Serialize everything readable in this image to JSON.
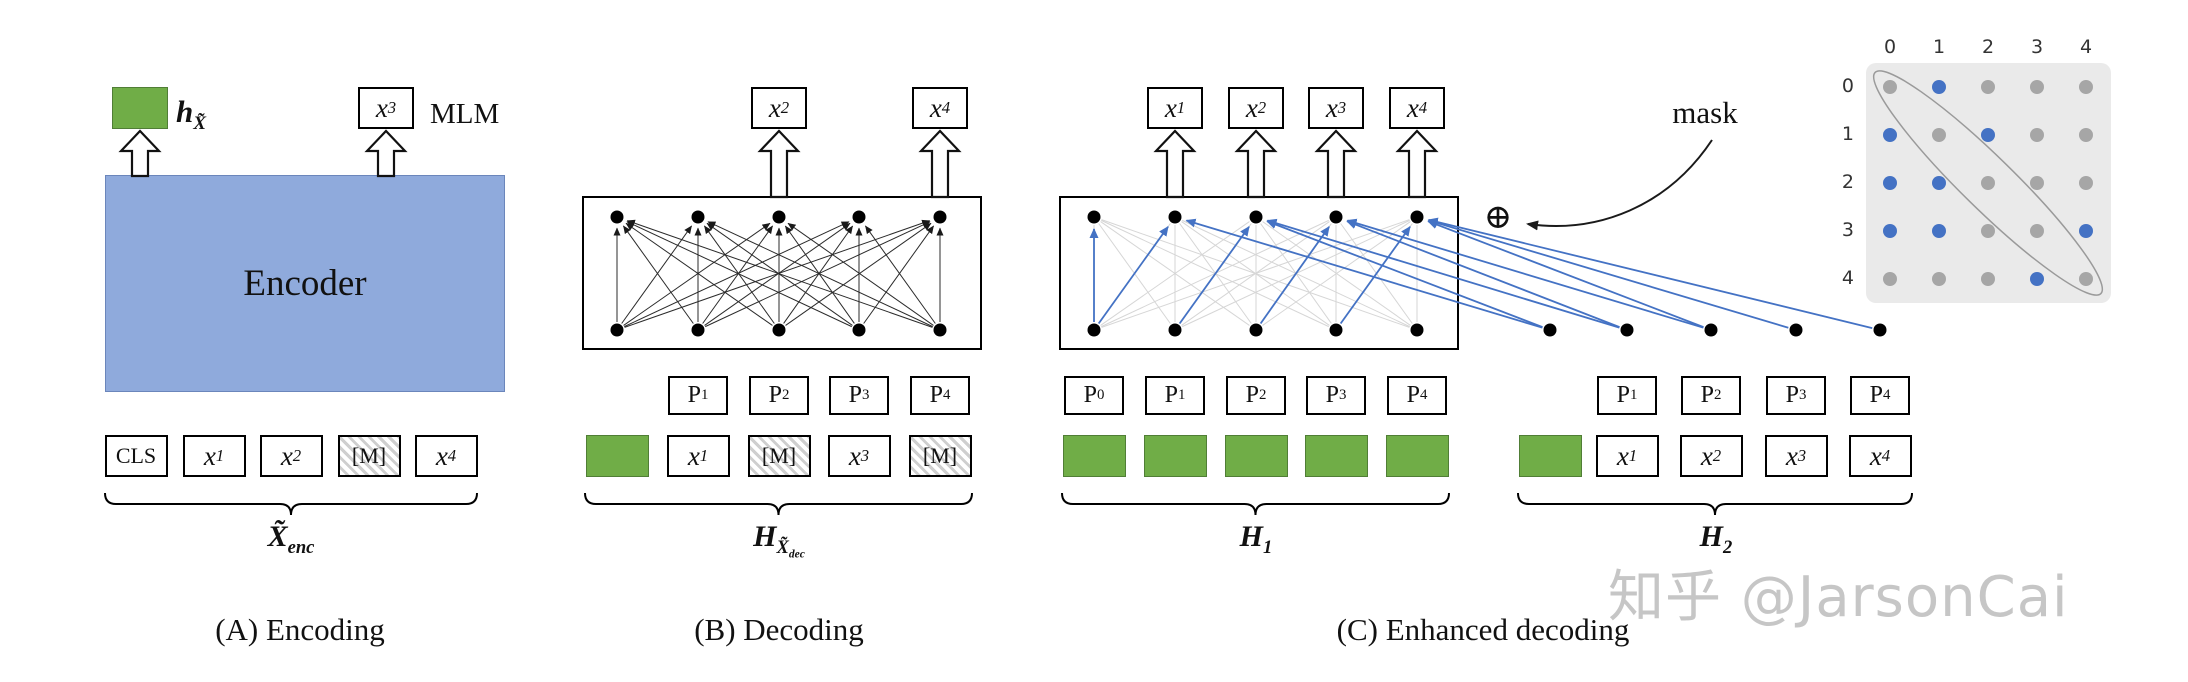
{
  "panel_a": {
    "caption": "(A) Encoding",
    "encoder_label": "Encoder",
    "mlm_label": "MLM",
    "h_label": {
      "base": "h",
      "sub": "X̃"
    },
    "brace_label": {
      "base": "X̃",
      "sub": "enc"
    },
    "top": [
      {
        "type": "green",
        "name": "sentence-embedding-box"
      },
      {
        "base": "x",
        "sub": "3",
        "type": "math",
        "name": "output-token-x3"
      }
    ],
    "tokens": [
      {
        "base": "CLS",
        "type": "plain",
        "name": "token-cls"
      },
      {
        "base": "x",
        "sub": "1",
        "type": "math",
        "name": "token-x1"
      },
      {
        "base": "x",
        "sub": "2",
        "type": "math",
        "name": "token-x2"
      },
      {
        "base": "[M]",
        "type": "mask",
        "name": "token-mask"
      },
      {
        "base": "x",
        "sub": "4",
        "type": "math",
        "name": "token-x4"
      }
    ]
  },
  "panel_b": {
    "caption": "(B) Decoding",
    "brace_label": {
      "base": "H",
      "sub": "X̃",
      "subsub": "dec"
    },
    "top": [
      {
        "base": "x",
        "sub": "2",
        "type": "math",
        "name": "output-token-x2"
      },
      {
        "base": "x",
        "sub": "4",
        "type": "math",
        "name": "output-token-x4"
      }
    ],
    "p_labels": [
      {
        "base": "P",
        "sub": "1",
        "type": "plain",
        "name": "position-p1"
      },
      {
        "base": "P",
        "sub": "2",
        "type": "plain",
        "name": "position-p2"
      },
      {
        "base": "P",
        "sub": "3",
        "type": "plain",
        "name": "position-p3"
      },
      {
        "base": "P",
        "sub": "4",
        "type": "plain",
        "name": "position-p4"
      }
    ],
    "tokens": [
      {
        "type": "green",
        "name": "embedding-box"
      },
      {
        "base": "x",
        "sub": "1",
        "type": "math",
        "name": "token-x1"
      },
      {
        "base": "[M]",
        "type": "mask",
        "name": "token-mask"
      },
      {
        "base": "x",
        "sub": "3",
        "type": "math",
        "name": "token-x3"
      },
      {
        "base": "[M]",
        "type": "mask",
        "name": "token-mask"
      }
    ]
  },
  "panel_c": {
    "caption": "(C) Enhanced decoding",
    "mask_label": "mask",
    "oplus_symbol": "⊕",
    "h1_label": {
      "base": "H",
      "sub": "1"
    },
    "h2_label": {
      "base": "H",
      "sub": "2"
    },
    "top": [
      {
        "base": "x",
        "sub": "1",
        "type": "math",
        "name": "output-token-x1"
      },
      {
        "base": "x",
        "sub": "2",
        "type": "math",
        "name": "output-token-x2"
      },
      {
        "base": "x",
        "sub": "3",
        "type": "math",
        "name": "output-token-x3"
      },
      {
        "base": "x",
        "sub": "4",
        "type": "math",
        "name": "output-token-x4"
      }
    ],
    "p1_labels": [
      {
        "base": "P",
        "sub": "0",
        "type": "plain",
        "name": "position-p0"
      },
      {
        "base": "P",
        "sub": "1",
        "type": "plain",
        "name": "position-p1"
      },
      {
        "base": "P",
        "sub": "2",
        "type": "plain",
        "name": "position-p2"
      },
      {
        "base": "P",
        "sub": "3",
        "type": "plain",
        "name": "position-p3"
      },
      {
        "base": "P",
        "sub": "4",
        "type": "plain",
        "name": "position-p4"
      }
    ],
    "h1_tokens": [
      {
        "type": "green",
        "name": "mask-embedding-box"
      },
      {
        "type": "green",
        "name": "mask-embedding-box"
      },
      {
        "type": "green",
        "name": "mask-embedding-box"
      },
      {
        "type": "green",
        "name": "mask-embedding-box"
      },
      {
        "type": "green",
        "name": "mask-embedding-box"
      }
    ],
    "p2_labels": [
      {
        "base": "P",
        "sub": "1",
        "type": "plain",
        "name": "position-p1"
      },
      {
        "base": "P",
        "sub": "2",
        "type": "plain",
        "name": "position-p2"
      },
      {
        "base": "P",
        "sub": "3",
        "type": "plain",
        "name": "position-p3"
      },
      {
        "base": "P",
        "sub": "4",
        "type": "plain",
        "name": "position-p4"
      }
    ],
    "h2_tokens": [
      {
        "type": "green",
        "name": "embedding-box"
      },
      {
        "base": "x",
        "sub": "1",
        "type": "math",
        "name": "token-x1"
      },
      {
        "base": "x",
        "sub": "2",
        "type": "math",
        "name": "token-x2"
      },
      {
        "base": "x",
        "sub": "3",
        "type": "math",
        "name": "token-x3"
      },
      {
        "base": "x",
        "sub": "4",
        "type": "math",
        "name": "token-x4"
      }
    ]
  },
  "attention_matrix": {
    "col_labels": [
      "0",
      "1",
      "2",
      "3",
      "4"
    ],
    "row_labels": [
      "0",
      "1",
      "2",
      "3",
      "4"
    ],
    "cells": [
      [
        "gray",
        "blue",
        "gray",
        "gray",
        "gray"
      ],
      [
        "blue",
        "gray",
        "blue",
        "gray",
        "gray"
      ],
      [
        "blue",
        "blue",
        "gray",
        "gray",
        "gray"
      ],
      [
        "blue",
        "blue",
        "gray",
        "gray",
        "blue"
      ],
      [
        "gray",
        "gray",
        "gray",
        "blue",
        "gray"
      ]
    ]
  },
  "colors": {
    "green": "#70ad47",
    "encoder_blue": "#8faadc",
    "blue": "#4472c4",
    "gray_dot": "#a6a6a6",
    "edge_gray": "#d6d6d6",
    "watermark": "#c6c6c6"
  },
  "watermark": "知乎 @JarsonCai"
}
